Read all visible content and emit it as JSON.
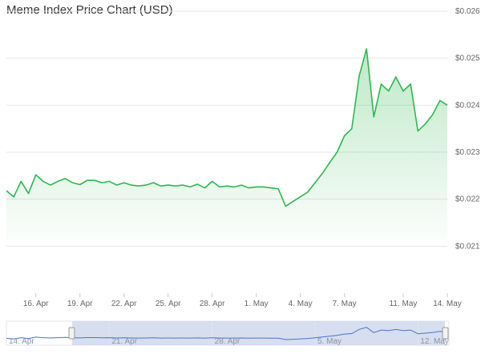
{
  "chart_data": {
    "type": "area",
    "title": "Meme Index Price Chart (USD)",
    "currency_prefix": "$",
    "x_range": [
      "2024-04-14",
      "2024-05-14"
    ],
    "x_tick_labels": [
      "16. Apr",
      "19. Apr",
      "22. Apr",
      "25. Apr",
      "28. Apr",
      "1. May",
      "4. May",
      "7. May",
      "11. May",
      "14. May"
    ],
    "navigator_tick_labels": [
      "14. Apr",
      "21. Apr",
      "28. Apr",
      "5. May",
      "12. May"
    ],
    "y_ticks": [
      0.021,
      0.022,
      0.023,
      0.024,
      0.025,
      0.026
    ],
    "y_tick_labels": [
      "$0.021",
      "$0.022",
      "$0.023",
      "$0.024",
      "$0.025",
      "$0.026"
    ],
    "ylim": [
      0.02,
      0.026
    ],
    "y_axis_position": "right",
    "grid": true,
    "legend": "none",
    "series": [
      {
        "color": "#2eb84f",
        "x": [
          "2024-04-14",
          "2024-04-14 12:00",
          "2024-04-15",
          "2024-04-15 12:00",
          "2024-04-16",
          "2024-04-16 12:00",
          "2024-04-17",
          "2024-04-17 12:00",
          "2024-04-18",
          "2024-04-18 12:00",
          "2024-04-19",
          "2024-04-19 12:00",
          "2024-04-20",
          "2024-04-20 12:00",
          "2024-04-21",
          "2024-04-21 12:00",
          "2024-04-22",
          "2024-04-22 12:00",
          "2024-04-23",
          "2024-04-23 12:00",
          "2024-04-24",
          "2024-04-24 12:00",
          "2024-04-25",
          "2024-04-25 12:00",
          "2024-04-26",
          "2024-04-26 12:00",
          "2024-04-27",
          "2024-04-27 12:00",
          "2024-04-28",
          "2024-04-28 12:00",
          "2024-04-29",
          "2024-04-29 12:00",
          "2024-04-30",
          "2024-04-30 12:00",
          "2024-05-01",
          "2024-05-01 12:00",
          "2024-05-02",
          "2024-05-02 12:00",
          "2024-05-03",
          "2024-05-03 12:00",
          "2024-05-04",
          "2024-05-04 12:00",
          "2024-05-05",
          "2024-05-05 12:00",
          "2024-05-06",
          "2024-05-06 12:00",
          "2024-05-07",
          "2024-05-07 12:00",
          "2024-05-08",
          "2024-05-08 12:00",
          "2024-05-09",
          "2024-05-09 12:00",
          "2024-05-10",
          "2024-05-10 12:00",
          "2024-05-11",
          "2024-05-11 12:00",
          "2024-05-12",
          "2024-05-12 12:00",
          "2024-05-13",
          "2024-05-13 12:00",
          "2024-05-14"
        ],
        "values": [
          0.02218,
          0.02205,
          0.02238,
          0.02212,
          0.02252,
          0.02238,
          0.0223,
          0.02238,
          0.02244,
          0.02235,
          0.02231,
          0.0224,
          0.0224,
          0.02235,
          0.02238,
          0.0223,
          0.02235,
          0.0223,
          0.02228,
          0.0223,
          0.02235,
          0.02228,
          0.0223,
          0.02228,
          0.0223,
          0.02226,
          0.02232,
          0.02224,
          0.02238,
          0.02226,
          0.02228,
          0.02226,
          0.0223,
          0.02224,
          0.02226,
          0.02226,
          0.02224,
          0.02222,
          0.02185,
          0.02195,
          0.02205,
          0.02215,
          0.02235,
          0.02255,
          0.02278,
          0.023,
          0.02335,
          0.0235,
          0.02462,
          0.0252,
          0.02375,
          0.02445,
          0.0243,
          0.0246,
          0.0243,
          0.02445,
          0.02345,
          0.0236,
          0.0238,
          0.0241,
          0.024
        ]
      }
    ]
  }
}
